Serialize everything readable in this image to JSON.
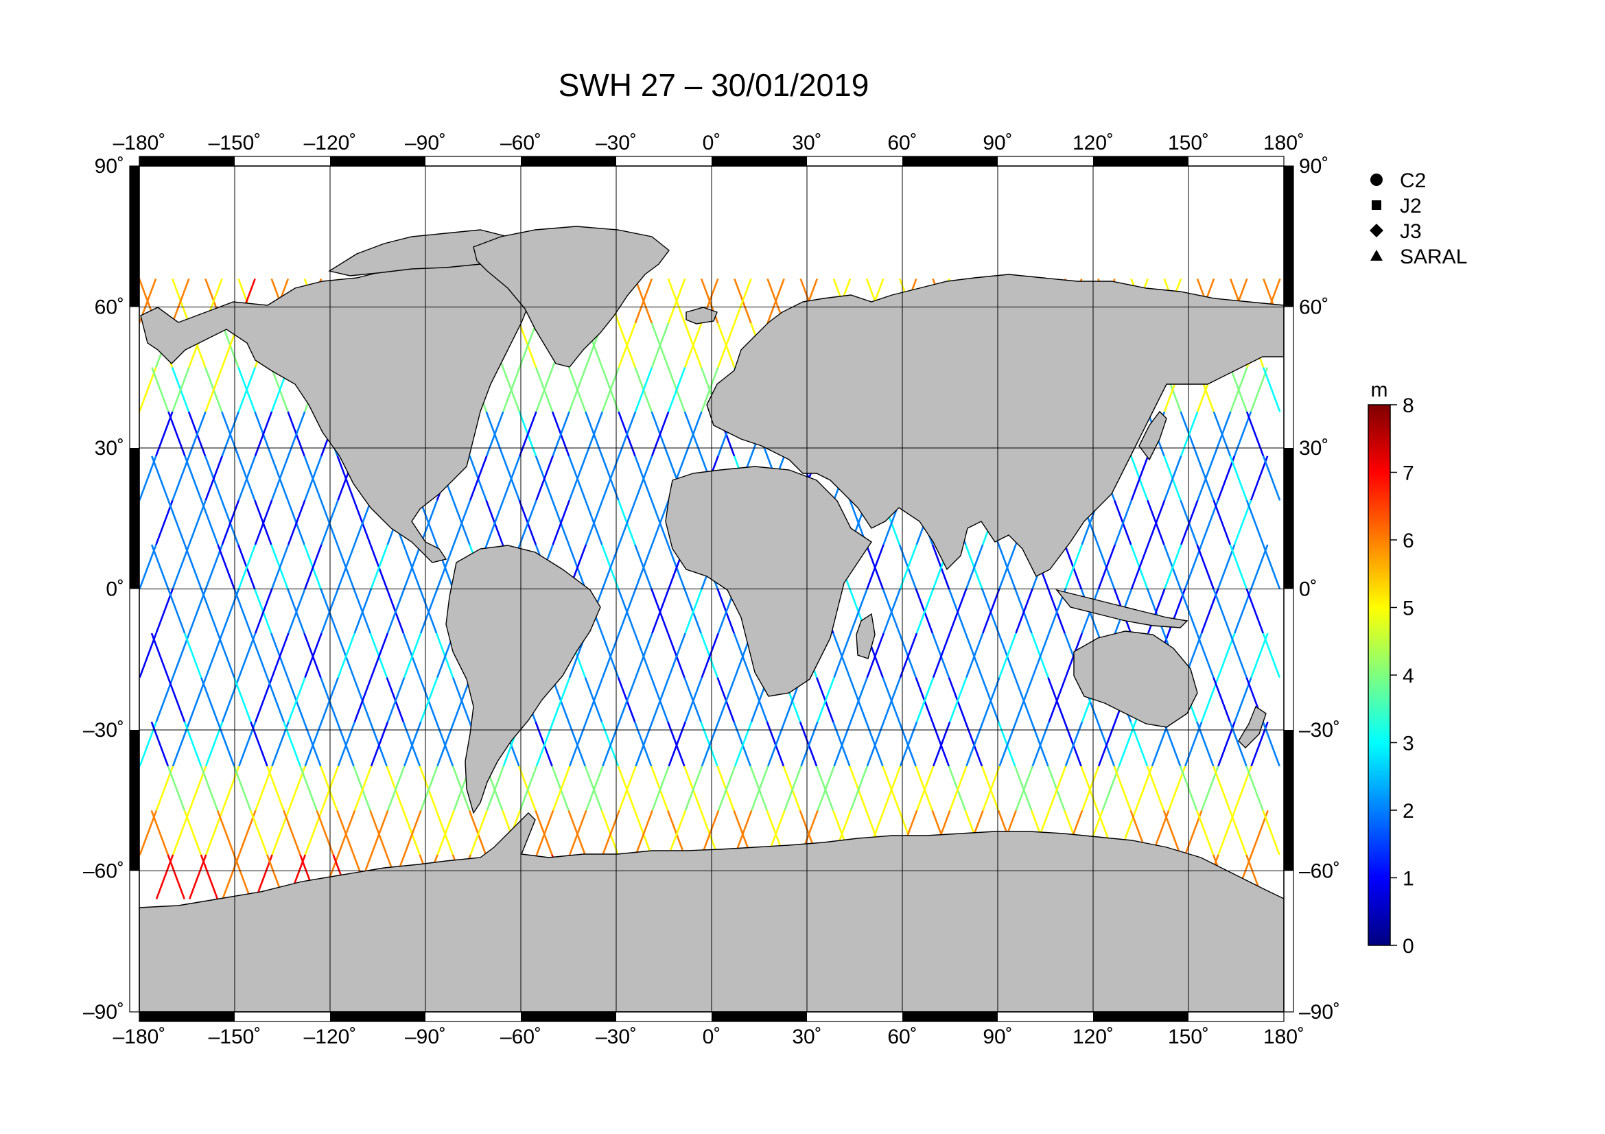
{
  "title": "SWH 27 – 30/01/2019",
  "map": {
    "lon_range": [
      -180,
      180
    ],
    "lat_range": [
      -90,
      90
    ],
    "lon_ticks": [
      {
        "value": -180,
        "label": "–180˚"
      },
      {
        "value": -150,
        "label": "–150˚"
      },
      {
        "value": -120,
        "label": "–120˚"
      },
      {
        "value": -90,
        "label": "–90˚"
      },
      {
        "value": -60,
        "label": "–60˚"
      },
      {
        "value": -30,
        "label": "–30˚"
      },
      {
        "value": 0,
        "label": "0˚"
      },
      {
        "value": 30,
        "label": "30˚"
      },
      {
        "value": 60,
        "label": "60˚"
      },
      {
        "value": 90,
        "label": "90˚"
      },
      {
        "value": 120,
        "label": "120˚"
      },
      {
        "value": 150,
        "label": "150˚"
      },
      {
        "value": 180,
        "label": "180˚"
      }
    ],
    "lat_ticks": [
      {
        "value": 90,
        "label": "90˚"
      },
      {
        "value": 60,
        "label": "60˚"
      },
      {
        "value": 30,
        "label": "30˚"
      },
      {
        "value": 0,
        "label": "0˚"
      },
      {
        "value": -30,
        "label": "–30˚"
      },
      {
        "value": -60,
        "label": "–60˚"
      },
      {
        "value": -90,
        "label": "–90˚"
      }
    ],
    "land_color": "#bdbdbd",
    "ocean_color": "#ffffff"
  },
  "legend": {
    "items": [
      {
        "label": "C2",
        "symbol": "circle"
      },
      {
        "label": "J2",
        "symbol": "square"
      },
      {
        "label": "J3",
        "symbol": "diamond"
      },
      {
        "label": "SARAL",
        "symbol": "triangle"
      }
    ]
  },
  "colorbar": {
    "unit": "m",
    "min": 0,
    "max": 8,
    "ticks": [
      {
        "value": 8,
        "label": "8"
      },
      {
        "value": 7,
        "label": "7"
      },
      {
        "value": 6,
        "label": "6"
      },
      {
        "value": 5,
        "label": "5"
      },
      {
        "value": 4,
        "label": "4"
      },
      {
        "value": 3,
        "label": "3"
      },
      {
        "value": 2,
        "label": "2"
      },
      {
        "value": 1,
        "label": "1"
      },
      {
        "value": 0,
        "label": "0"
      }
    ],
    "colormap": [
      "#00007f",
      "#0000ff",
      "#007fff",
      "#00ffff",
      "#7fff7f",
      "#ffff00",
      "#ff7f00",
      "#ff0000",
      "#7f0000"
    ]
  }
}
